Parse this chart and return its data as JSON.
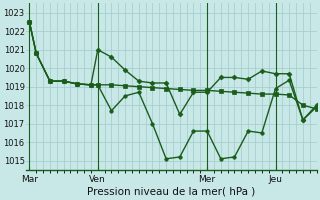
{
  "bg_color": "#c8e8e8",
  "grid_color": "#a8cece",
  "line_color": "#1a5c1a",
  "xlabel": "Pression niveau de la mer( hPa )",
  "ylim": [
    1014.5,
    1023.5
  ],
  "yticks": [
    1015,
    1016,
    1017,
    1018,
    1019,
    1020,
    1021,
    1022,
    1023
  ],
  "xtick_labels": [
    "Mar",
    "Ven",
    "Mer",
    "Jeu"
  ],
  "xtick_positions": [
    0,
    10,
    26,
    36
  ],
  "vline_positions": [
    0,
    10,
    26,
    36
  ],
  "xlim": [
    -0.5,
    42
  ],
  "series1_x": [
    0,
    1,
    3,
    5,
    7,
    9,
    10,
    12,
    14,
    16,
    18,
    20,
    22,
    24,
    26,
    28,
    30,
    32,
    34,
    36,
    38,
    40,
    42
  ],
  "series1_y": [
    1022.5,
    1020.8,
    1019.3,
    1019.3,
    1019.15,
    1019.1,
    1019.1,
    1019.1,
    1019.05,
    1019.0,
    1018.95,
    1018.9,
    1018.85,
    1018.8,
    1018.8,
    1018.75,
    1018.7,
    1018.65,
    1018.6,
    1018.6,
    1018.55,
    1018.0,
    1017.8
  ],
  "series2_x": [
    0,
    1,
    3,
    5,
    7,
    9,
    10,
    12,
    14,
    16,
    18,
    20,
    22,
    24,
    26,
    28,
    30,
    32,
    34,
    36,
    38,
    40,
    42
  ],
  "series2_y": [
    1022.5,
    1020.8,
    1019.3,
    1019.3,
    1019.15,
    1019.1,
    1021.0,
    1020.6,
    1019.9,
    1019.3,
    1019.2,
    1019.2,
    1017.5,
    1018.7,
    1018.7,
    1019.5,
    1019.5,
    1019.4,
    1019.85,
    1019.7,
    1019.7,
    1017.2,
    1018.0
  ],
  "series3_x": [
    0,
    1,
    3,
    5,
    7,
    9,
    10,
    12,
    14,
    16,
    18,
    20,
    22,
    24,
    26,
    28,
    30,
    32,
    34,
    36,
    38,
    40,
    42
  ],
  "series3_y": [
    1022.5,
    1020.8,
    1019.3,
    1019.3,
    1019.15,
    1019.1,
    1019.1,
    1017.7,
    1018.5,
    1018.7,
    1017.0,
    1015.1,
    1015.2,
    1016.6,
    1016.6,
    1015.1,
    1015.2,
    1016.6,
    1016.5,
    1018.9,
    1019.35,
    1017.2,
    1017.9
  ],
  "marker_size": 2.5,
  "linewidth": 1.0
}
